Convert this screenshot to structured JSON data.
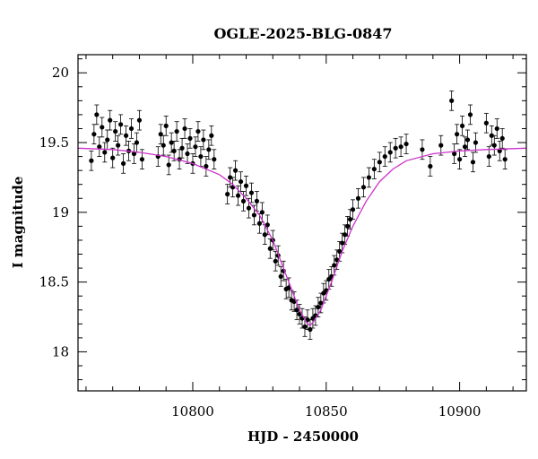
{
  "chart_data": {
    "type": "scatter",
    "title": "OGLE-2025-BLG-0847",
    "xlabel": "HJD - 2450000",
    "ylabel": "I magnitude",
    "xlim": [
      10757,
      10925
    ],
    "ylim": [
      20.13,
      17.72
    ],
    "y_inverted": true,
    "x_ticks": [
      10800,
      10850,
      10900
    ],
    "y_ticks": [
      18,
      18.5,
      19,
      19.5,
      20
    ],
    "x_tick_labels": [
      "10800",
      "10850",
      "10900"
    ],
    "y_tick_labels": [
      "18",
      "18.5",
      "19",
      "19.5",
      "20"
    ],
    "grid": false,
    "legend": "none",
    "series": [
      {
        "kind": "photometry",
        "marker": "filled-circle",
        "color": "#000000",
        "error_bars": true,
        "typical_error_mag": 0.07,
        "points": [
          [
            10762,
            19.37
          ],
          [
            10763,
            19.56
          ],
          [
            10764,
            19.7
          ],
          [
            10765,
            19.47
          ],
          [
            10766,
            19.61
          ],
          [
            10767,
            19.43
          ],
          [
            10768,
            19.52
          ],
          [
            10769,
            19.66
          ],
          [
            10770,
            19.39
          ],
          [
            10771,
            19.58
          ],
          [
            10772,
            19.48
          ],
          [
            10773,
            19.63
          ],
          [
            10774,
            19.35
          ],
          [
            10775,
            19.55
          ],
          [
            10776,
            19.44
          ],
          [
            10777,
            19.6
          ],
          [
            10778,
            19.42
          ],
          [
            10779,
            19.5
          ],
          [
            10780,
            19.66
          ],
          [
            10781,
            19.38
          ],
          [
            10787,
            19.4
          ],
          [
            10788,
            19.56
          ],
          [
            10789,
            19.48
          ],
          [
            10790,
            19.62
          ],
          [
            10791,
            19.34
          ],
          [
            10792,
            19.5
          ],
          [
            10793,
            19.44
          ],
          [
            10794,
            19.58
          ],
          [
            10795,
            19.38
          ],
          [
            10796,
            19.46
          ],
          [
            10797,
            19.6
          ],
          [
            10798,
            19.42
          ],
          [
            10799,
            19.53
          ],
          [
            10800,
            19.35
          ],
          [
            10801,
            19.47
          ],
          [
            10802,
            19.58
          ],
          [
            10803,
            19.4
          ],
          [
            10804,
            19.52
          ],
          [
            10805,
            19.33
          ],
          [
            10806,
            19.45
          ],
          [
            10807,
            19.55
          ],
          [
            10808,
            19.38
          ],
          [
            10813,
            19.13
          ],
          [
            10814,
            19.25
          ],
          [
            10815,
            19.18
          ],
          [
            10816,
            19.3
          ],
          [
            10817,
            19.12
          ],
          [
            10818,
            19.22
          ],
          [
            10819,
            19.08
          ],
          [
            10820,
            19.19
          ],
          [
            10821,
            19.03
          ],
          [
            10822,
            19.14
          ],
          [
            10823,
            18.98
          ],
          [
            10824,
            19.08
          ],
          [
            10825,
            18.92
          ],
          [
            10826,
            19.0
          ],
          [
            10827,
            18.84
          ],
          [
            10828,
            18.91
          ],
          [
            10829,
            18.74
          ],
          [
            10830,
            18.8
          ],
          [
            10831,
            18.65
          ],
          [
            10832,
            18.69
          ],
          [
            10833,
            18.54
          ],
          [
            10834,
            18.58
          ],
          [
            10835,
            18.45
          ],
          [
            10836,
            18.46
          ],
          [
            10837,
            18.37
          ],
          [
            10838,
            18.36
          ],
          [
            10839,
            18.3
          ],
          [
            10840,
            18.27
          ],
          [
            10841,
            18.24
          ],
          [
            10842,
            18.18
          ],
          [
            10843,
            18.23
          ],
          [
            10844,
            18.16
          ],
          [
            10845,
            18.24
          ],
          [
            10846,
            18.26
          ],
          [
            10847,
            18.32
          ],
          [
            10848,
            18.35
          ],
          [
            10849,
            18.42
          ],
          [
            10850,
            18.44
          ],
          [
            10851,
            18.52
          ],
          [
            10852,
            18.54
          ],
          [
            10853,
            18.62
          ],
          [
            10854,
            18.66
          ],
          [
            10855,
            18.72
          ],
          [
            10856,
            18.78
          ],
          [
            10857,
            18.84
          ],
          [
            10858,
            18.9
          ],
          [
            10859,
            18.95
          ],
          [
            10860,
            19.02
          ],
          [
            10862,
            19.1
          ],
          [
            10864,
            19.18
          ],
          [
            10866,
            19.25
          ],
          [
            10868,
            19.31
          ],
          [
            10870,
            19.36
          ],
          [
            10872,
            19.4
          ],
          [
            10874,
            19.43
          ],
          [
            10876,
            19.46
          ],
          [
            10878,
            19.47
          ],
          [
            10880,
            19.49
          ],
          [
            10886,
            19.45
          ],
          [
            10889,
            19.33
          ],
          [
            10893,
            19.48
          ],
          [
            10897,
            19.8
          ],
          [
            10898,
            19.42
          ],
          [
            10899,
            19.56
          ],
          [
            10900,
            19.38
          ],
          [
            10901,
            19.62
          ],
          [
            10902,
            19.47
          ],
          [
            10903,
            19.52
          ],
          [
            10904,
            19.7
          ],
          [
            10905,
            19.36
          ],
          [
            10906,
            19.5
          ],
          [
            10910,
            19.64
          ],
          [
            10911,
            19.4
          ],
          [
            10912,
            19.55
          ],
          [
            10913,
            19.48
          ],
          [
            10914,
            19.6
          ],
          [
            10915,
            19.44
          ],
          [
            10916,
            19.53
          ],
          [
            10917,
            19.38
          ]
        ]
      },
      {
        "kind": "model",
        "line": "solid",
        "color": "#cc33cc",
        "points": [
          [
            10757,
            19.46
          ],
          [
            10770,
            19.45
          ],
          [
            10780,
            19.43
          ],
          [
            10790,
            19.4
          ],
          [
            10800,
            19.35
          ],
          [
            10810,
            19.27
          ],
          [
            10815,
            19.2
          ],
          [
            10820,
            19.1
          ],
          [
            10825,
            18.98
          ],
          [
            10830,
            18.8
          ],
          [
            10835,
            18.55
          ],
          [
            10840,
            18.3
          ],
          [
            10843,
            18.2
          ],
          [
            10844,
            18.19
          ],
          [
            10845,
            18.21
          ],
          [
            10848,
            18.3
          ],
          [
            10852,
            18.5
          ],
          [
            10856,
            18.72
          ],
          [
            10860,
            18.9
          ],
          [
            10865,
            19.08
          ],
          [
            10870,
            19.22
          ],
          [
            10875,
            19.31
          ],
          [
            10880,
            19.37
          ],
          [
            10890,
            19.42
          ],
          [
            10900,
            19.44
          ],
          [
            10910,
            19.45
          ],
          [
            10925,
            19.46
          ]
        ]
      }
    ]
  }
}
